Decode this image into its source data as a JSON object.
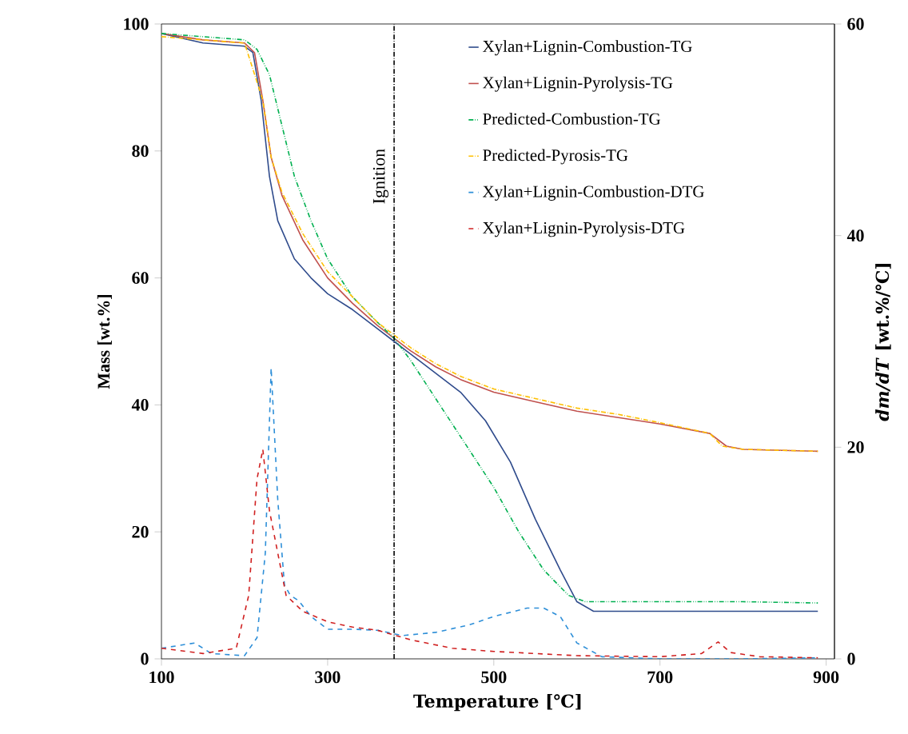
{
  "chart_data": {
    "type": "line",
    "xlabel": "Temperature [℃]",
    "ylabel": "Mass [wt.%]",
    "y2label": "*dm/dT* [wt.%/℃]",
    "xlim": [
      100,
      910
    ],
    "xticks": [
      100,
      300,
      500,
      700,
      900
    ],
    "ylim": [
      0,
      100
    ],
    "yticks": [
      0,
      20,
      40,
      60,
      80,
      100
    ],
    "y2lim": [
      0,
      60
    ],
    "y2ticks": [
      0,
      20,
      40,
      60
    ],
    "legend": "top",
    "ref_lines": [
      {
        "axis": "x",
        "value": 380,
        "label": "Ignition",
        "color": "#000000",
        "line_style": "dashdot"
      }
    ],
    "series": [
      {
        "name": "Xylan+Lignin-Combustion-TG",
        "color": "#2f4b8c",
        "line_style": "solid",
        "x": [
          100,
          150,
          200,
          210,
          220,
          230,
          240,
          260,
          280,
          300,
          330,
          360,
          380,
          400,
          430,
          460,
          490,
          520,
          550,
          580,
          600,
          620,
          700,
          800,
          890
        ],
        "values": [
          98.5,
          97,
          96.5,
          95.5,
          88,
          76,
          69,
          63,
          60,
          57.5,
          55,
          52,
          50,
          48,
          45,
          42,
          37.5,
          31,
          22,
          14,
          9,
          7.5,
          7.5,
          7.5,
          7.5
        ]
      },
      {
        "name": "Xylan+Lignin-Pyrolysis-TG",
        "color": "#c0504d",
        "line_style": "solid",
        "x": [
          100,
          150,
          200,
          212,
          222,
          232,
          245,
          270,
          300,
          330,
          360,
          380,
          400,
          430,
          460,
          500,
          550,
          600,
          650,
          700,
          760,
          780,
          800,
          890
        ],
        "values": [
          98.5,
          97.5,
          97,
          95.5,
          88,
          79,
          73,
          66,
          60,
          56,
          52.5,
          50.5,
          48.5,
          46,
          44,
          42,
          40.5,
          39,
          38,
          37,
          35.5,
          33.5,
          33,
          32.7
        ]
      },
      {
        "name": "Predicted-Combustion-TG",
        "color": "#00b050",
        "line_style": "dashdotdot",
        "x": [
          100,
          200,
          215,
          230,
          245,
          260,
          280,
          300,
          330,
          360,
          380,
          400,
          430,
          460,
          500,
          530,
          560,
          590,
          610,
          700,
          800,
          890
        ],
        "values": [
          98.5,
          97.5,
          96,
          92,
          84,
          76,
          69,
          63,
          57,
          53,
          50.5,
          47,
          41,
          35,
          27,
          20,
          14,
          10,
          9,
          9,
          9,
          8.8
        ]
      },
      {
        "name": "Predicted-Pyrosis-TG",
        "color": "#ffc000",
        "line_style": "dashdot",
        "x": [
          100,
          200,
          222,
          232,
          245,
          270,
          300,
          330,
          360,
          380,
          400,
          430,
          460,
          500,
          550,
          600,
          650,
          700,
          760,
          775,
          800,
          890
        ],
        "values": [
          98,
          97,
          88,
          79,
          73.5,
          67,
          61,
          57,
          53,
          51,
          49,
          46.5,
          44.5,
          42.5,
          41,
          39.5,
          38.5,
          37.2,
          35.5,
          33.5,
          33,
          32.7
        ]
      },
      {
        "name": "Xylan+Lignin-Combustion-DTG",
        "color": "#2e8fd8",
        "line_style": "dashed",
        "axis": "y2",
        "x": [
          100,
          140,
          160,
          200,
          215,
          225,
          232,
          240,
          248,
          255,
          265,
          280,
          300,
          330,
          360,
          390,
          430,
          470,
          500,
          540,
          560,
          580,
          600,
          630,
          700,
          800,
          890
        ],
        "values": [
          1,
          1.5,
          0.5,
          0.3,
          2,
          10,
          27.5,
          15,
          7,
          6,
          5.5,
          4,
          2.8,
          2.8,
          2.7,
          2.2,
          2.5,
          3.2,
          4,
          4.8,
          4.8,
          4,
          1.5,
          0.2,
          0,
          0,
          0.1
        ]
      },
      {
        "name": "Xylan+Lignin-Pyrolysis-DTG",
        "color": "#d02020",
        "line_style": "dashed",
        "axis": "y2",
        "x": [
          100,
          150,
          190,
          205,
          215,
          222,
          230,
          240,
          250,
          270,
          300,
          330,
          360,
          400,
          450,
          500,
          600,
          700,
          750,
          770,
          785,
          820,
          890
        ],
        "values": [
          1,
          0.5,
          1,
          6,
          17,
          19.8,
          14,
          10,
          6,
          4.5,
          3.5,
          3,
          2.7,
          1.8,
          1,
          0.7,
          0.3,
          0.2,
          0.5,
          1.6,
          0.6,
          0.2,
          0.1
        ]
      }
    ]
  }
}
